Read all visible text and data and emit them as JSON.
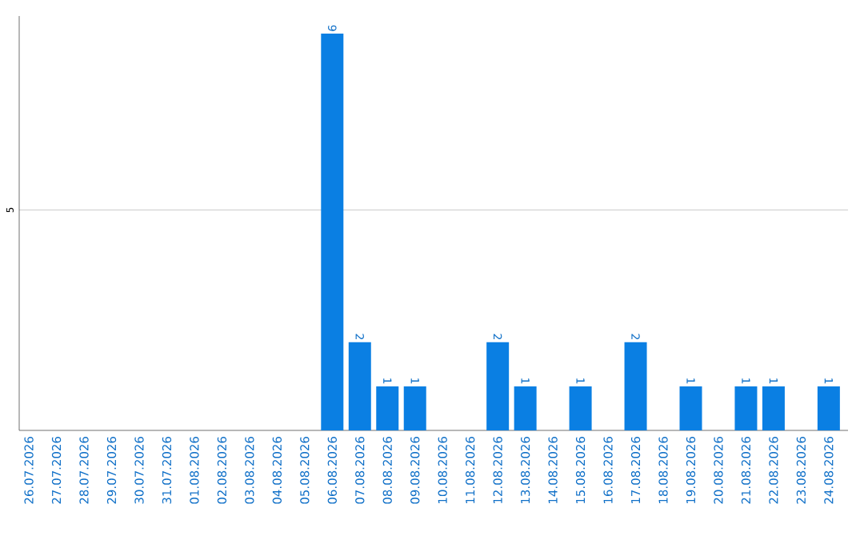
{
  "chart_data": {
    "type": "bar",
    "categories": [
      "26.07.2026",
      "27.07.2026",
      "28.07.2026",
      "29.07.2026",
      "30.07.2026",
      "31.07.2026",
      "01.08.2026",
      "02.08.2026",
      "03.08.2026",
      "04.08.2026",
      "05.08.2026",
      "06.08.2026",
      "07.08.2026",
      "08.08.2026",
      "09.08.2026",
      "10.08.2026",
      "11.08.2026",
      "12.08.2026",
      "13.08.2026",
      "14.08.2026",
      "15.08.2026",
      "16.08.2026",
      "17.08.2026",
      "18.08.2026",
      "19.08.2026",
      "20.08.2026",
      "21.08.2026",
      "22.08.2026",
      "23.08.2026",
      "24.08.2026"
    ],
    "values": [
      0,
      0,
      0,
      0,
      0,
      0,
      0,
      0,
      0,
      0,
      0,
      9,
      2,
      1,
      1,
      0,
      0,
      2,
      1,
      0,
      1,
      0,
      2,
      0,
      1,
      0,
      1,
      1,
      0,
      1
    ],
    "value_labels": [
      null,
      null,
      null,
      null,
      null,
      null,
      null,
      null,
      null,
      null,
      null,
      "9",
      "2",
      "1",
      "1",
      null,
      null,
      "2",
      "1",
      null,
      "1",
      null,
      "2",
      null,
      "1",
      null,
      "1",
      "1",
      null,
      "1"
    ],
    "color": "#0a7fe3",
    "ylim": [
      0,
      9.4
    ],
    "yticks": [
      5
    ],
    "grid": "y"
  }
}
